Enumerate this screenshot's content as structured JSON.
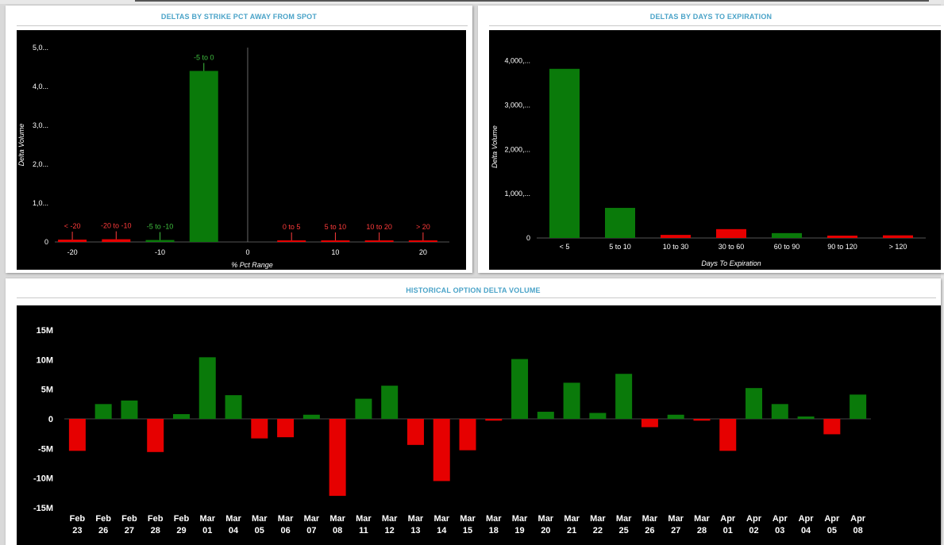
{
  "colors": {
    "positive": "#0a7a0a",
    "negative": "#e60000",
    "title": "#4aa3c8",
    "background": "#000000",
    "axis_text": "#ffffff",
    "label_pos": "#3fbf3f",
    "label_neg": "#ff3b3b"
  },
  "panels": {
    "strike": {
      "title": "DELTAS BY STRIKE PCT AWAY FROM SPOT"
    },
    "expiration": {
      "title": "DELTAS BY DAYS TO EXPIRATION"
    },
    "historical": {
      "title": "HISTORICAL OPTION DELTA VOLUME"
    }
  },
  "chart_data": [
    {
      "type": "bar",
      "xlabel": "% Pct Range",
      "ylabel": "Delta Volume",
      "x_ticks": [
        "-20",
        "-10",
        "0",
        "10",
        "20"
      ],
      "x_tick_values": [
        -20,
        -10,
        0,
        10,
        20
      ],
      "y_ticks": [
        "0",
        "1,0...",
        "2,0...",
        "3,0...",
        "4,0...",
        "5,0..."
      ],
      "y_tick_values": [
        0,
        1000000,
        2000000,
        3000000,
        4000000,
        5000000
      ],
      "ylim": [
        0,
        5000000
      ],
      "xlim": [
        -22,
        23
      ],
      "bars": [
        {
          "label": "< -20",
          "center": -20,
          "value": 60000,
          "sign": "negative"
        },
        {
          "label": "-20 to -10",
          "center": -15,
          "value": 70000,
          "sign": "negative"
        },
        {
          "label": "-5 to -10",
          "center": -10,
          "value": 50000,
          "sign": "positive"
        },
        {
          "label": "-5 to 0",
          "center": -5,
          "value": 4400000,
          "sign": "positive"
        },
        {
          "label": "0 to 5",
          "center": 5,
          "value": 20000,
          "sign": "negative"
        },
        {
          "label": "5 to 10",
          "center": 10,
          "value": 20000,
          "sign": "negative"
        },
        {
          "label": "10 to 20",
          "center": 15,
          "value": 20000,
          "sign": "negative"
        },
        {
          "label": "> 20",
          "center": 20,
          "value": 20000,
          "sign": "negative"
        }
      ]
    },
    {
      "type": "bar",
      "xlabel": "Days To Expiration",
      "ylabel": "Delta Volume",
      "categories": [
        "< 5",
        "5 to 10",
        "10 to 30",
        "30 to 60",
        "60 to 90",
        "90 to 120",
        "> 120"
      ],
      "values": [
        3820000,
        680000,
        70000,
        200000,
        110000,
        30000,
        60000
      ],
      "signs": [
        "positive",
        "positive",
        "negative",
        "negative",
        "positive",
        "negative",
        "negative"
      ],
      "y_ticks": [
        "0",
        "1,000,...",
        "2,000,...",
        "3,000,...",
        "4,000,..."
      ],
      "y_tick_values": [
        0,
        1000000,
        2000000,
        3000000,
        4000000
      ],
      "ylim": [
        0,
        4300000
      ]
    },
    {
      "type": "bar",
      "categories": [
        [
          "Feb",
          "23"
        ],
        [
          "Feb",
          "26"
        ],
        [
          "Feb",
          "27"
        ],
        [
          "Feb",
          "28"
        ],
        [
          "Feb",
          "29"
        ],
        [
          "Mar",
          "01"
        ],
        [
          "Mar",
          "04"
        ],
        [
          "Mar",
          "05"
        ],
        [
          "Mar",
          "06"
        ],
        [
          "Mar",
          "07"
        ],
        [
          "Mar",
          "08"
        ],
        [
          "Mar",
          "11"
        ],
        [
          "Mar",
          "12"
        ],
        [
          "Mar",
          "13"
        ],
        [
          "Mar",
          "14"
        ],
        [
          "Mar",
          "15"
        ],
        [
          "Mar",
          "18"
        ],
        [
          "Mar",
          "19"
        ],
        [
          "Mar",
          "20"
        ],
        [
          "Mar",
          "21"
        ],
        [
          "Mar",
          "22"
        ],
        [
          "Mar",
          "25"
        ],
        [
          "Mar",
          "26"
        ],
        [
          "Mar",
          "27"
        ],
        [
          "Mar",
          "28"
        ],
        [
          "Apr",
          "01"
        ],
        [
          "Apr",
          "02"
        ],
        [
          "Apr",
          "03"
        ],
        [
          "Apr",
          "04"
        ],
        [
          "Apr",
          "05"
        ],
        [
          "Apr",
          "08"
        ]
      ],
      "values": [
        -5.4,
        2.5,
        3.1,
        -5.6,
        0.8,
        10.4,
        4.0,
        -3.3,
        -3.1,
        0.7,
        -13.0,
        3.4,
        5.6,
        -4.4,
        -10.5,
        -5.3,
        -0.3,
        10.1,
        1.2,
        6.1,
        1.0,
        7.6,
        -1.4,
        0.7,
        -0.3,
        -5.4,
        5.2,
        2.5,
        0.4,
        -2.6,
        4.1
      ],
      "unit": "M",
      "y_ticks": [
        "15M",
        "10M",
        "5M",
        "0",
        "-5M",
        "-10M",
        "-15M"
      ],
      "y_tick_values": [
        15,
        10,
        5,
        0,
        -5,
        -10,
        -15
      ],
      "ylim": [
        -15,
        15
      ]
    }
  ]
}
